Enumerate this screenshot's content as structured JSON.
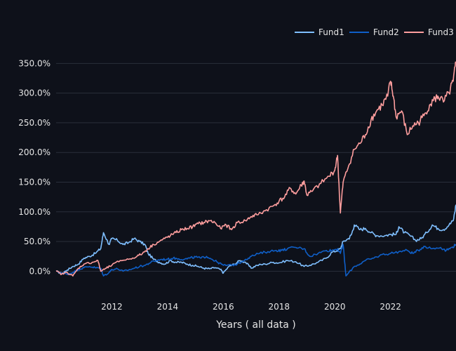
{
  "chart_data": {
    "type": "line",
    "title": "",
    "xlabel": "Years ( all data )",
    "ylabel": "",
    "x_range": [
      2010.0,
      2024.35
    ],
    "ylim": [
      -0.28,
      3.8
    ],
    "y_ticks": [
      0,
      0.5,
      1.0,
      1.5,
      2.0,
      2.5,
      3.0,
      3.5
    ],
    "y_tick_labels": [
      "0.0%",
      "50.0%",
      "100.0%",
      "150.0%",
      "200.0%",
      "250.0%",
      "300.0%",
      "350.0%"
    ],
    "x_ticks": [
      2012,
      2014,
      2016,
      2018,
      2020,
      2022
    ],
    "x_tick_labels": [
      "2012",
      "2014",
      "2016",
      "2018",
      "2020",
      "2022"
    ],
    "grid": true,
    "legend_position": "top-right",
    "background": "#0e111a",
    "series": [
      {
        "name": "Fund1",
        "color": "#7fbfff",
        "x": [
          2010.0,
          2010.2,
          2010.4,
          2010.6,
          2010.8,
          2011.0,
          2011.2,
          2011.4,
          2011.6,
          2011.7,
          2011.9,
          2012.0,
          2012.2,
          2012.4,
          2012.6,
          2012.8,
          2013.0,
          2013.2,
          2013.3,
          2013.5,
          2013.7,
          2013.9,
          2014.1,
          2014.3,
          2014.5,
          2014.7,
          2014.9,
          2015.1,
          2015.3,
          2015.5,
          2015.7,
          2015.9,
          2016.0,
          2016.2,
          2016.4,
          2016.6,
          2016.8,
          2017.0,
          2017.2,
          2017.5,
          2017.8,
          2018.0,
          2018.3,
          2018.6,
          2018.9,
          2019.1,
          2019.4,
          2019.7,
          2019.9,
          2020.1,
          2020.2,
          2020.3,
          2020.5,
          2020.6,
          2020.7,
          2020.9,
          2021.1,
          2021.3,
          2021.5,
          2021.8,
          2022.0,
          2022.2,
          2022.3,
          2022.5,
          2022.7,
          2022.9,
          2023.1,
          2023.3,
          2023.5,
          2023.7,
          2023.9,
          2024.1,
          2024.25,
          2024.35
        ],
        "values": [
          0.0,
          -0.04,
          0.02,
          0.08,
          0.12,
          0.22,
          0.25,
          0.3,
          0.38,
          0.65,
          0.45,
          0.55,
          0.52,
          0.45,
          0.48,
          0.55,
          0.5,
          0.44,
          0.3,
          0.2,
          0.15,
          0.12,
          0.18,
          0.15,
          0.15,
          0.12,
          0.1,
          0.08,
          0.05,
          0.04,
          0.06,
          0.03,
          -0.03,
          0.08,
          0.12,
          0.18,
          0.15,
          0.05,
          0.1,
          0.12,
          0.15,
          0.14,
          0.18,
          0.16,
          0.08,
          0.1,
          0.15,
          0.22,
          0.32,
          0.35,
          0.38,
          0.5,
          0.55,
          0.62,
          0.78,
          0.7,
          0.72,
          0.65,
          0.6,
          0.6,
          0.62,
          0.62,
          0.75,
          0.65,
          0.6,
          0.52,
          0.55,
          0.65,
          0.78,
          0.72,
          0.7,
          0.78,
          0.85,
          1.12
        ]
      },
      {
        "name": "Fund2",
        "color": "#0f5fc8",
        "x": [
          2010.0,
          2010.2,
          2010.4,
          2010.6,
          2010.8,
          2011.0,
          2011.2,
          2011.4,
          2011.6,
          2011.7,
          2011.9,
          2012.0,
          2012.2,
          2012.4,
          2012.6,
          2012.8,
          2013.0,
          2013.2,
          2013.4,
          2013.6,
          2013.8,
          2014.0,
          2014.2,
          2014.4,
          2014.6,
          2014.8,
          2015.0,
          2015.2,
          2015.4,
          2015.6,
          2015.8,
          2016.0,
          2016.3,
          2016.5,
          2016.8,
          2017.0,
          2017.3,
          2017.6,
          2017.9,
          2018.1,
          2018.3,
          2018.6,
          2018.9,
          2019.1,
          2019.4,
          2019.7,
          2019.9,
          2020.1,
          2020.2,
          2020.3,
          2020.4,
          2020.7,
          2020.9,
          2021.1,
          2021.4,
          2021.7,
          2022.0,
          2022.3,
          2022.6,
          2022.8,
          2023.0,
          2023.2,
          2023.5,
          2023.8,
          2024.0,
          2024.2,
          2024.35
        ],
        "values": [
          0.0,
          -0.03,
          -0.05,
          -0.02,
          0.03,
          0.06,
          0.08,
          0.06,
          0.05,
          -0.08,
          -0.02,
          0.03,
          0.04,
          0.0,
          0.02,
          0.05,
          0.08,
          0.1,
          0.15,
          0.18,
          0.2,
          0.2,
          0.22,
          0.21,
          0.2,
          0.22,
          0.24,
          0.22,
          0.25,
          0.2,
          0.15,
          0.1,
          0.1,
          0.12,
          0.2,
          0.25,
          0.3,
          0.33,
          0.35,
          0.35,
          0.38,
          0.4,
          0.38,
          0.25,
          0.3,
          0.35,
          0.35,
          0.38,
          0.3,
          0.45,
          -0.08,
          0.08,
          0.12,
          0.18,
          0.22,
          0.28,
          0.3,
          0.33,
          0.35,
          0.3,
          0.35,
          0.42,
          0.38,
          0.4,
          0.35,
          0.4,
          0.45
        ]
      },
      {
        "name": "Fund3",
        "color": "#ff9e9e",
        "x": [
          2010.0,
          2010.2,
          2010.4,
          2010.6,
          2010.8,
          2011.0,
          2011.3,
          2011.5,
          2011.6,
          2011.8,
          2012.0,
          2012.3,
          2012.6,
          2012.9,
          2013.1,
          2013.3,
          2013.5,
          2013.7,
          2013.9,
          2014.1,
          2014.3,
          2014.5,
          2014.7,
          2014.9,
          2015.1,
          2015.3,
          2015.5,
          2015.7,
          2015.9,
          2016.1,
          2016.3,
          2016.5,
          2016.8,
          2017.0,
          2017.2,
          2017.5,
          2017.8,
          2018.0,
          2018.2,
          2018.4,
          2018.6,
          2018.8,
          2018.9,
          2019.0,
          2019.2,
          2019.5,
          2019.8,
          2020.0,
          2020.1,
          2020.2,
          2020.3,
          2020.5,
          2020.7,
          2020.9,
          2021.1,
          2021.3,
          2021.5,
          2021.7,
          2021.9,
          2022.0,
          2022.1,
          2022.2,
          2022.4,
          2022.6,
          2022.8,
          2023.0,
          2023.2,
          2023.4,
          2023.6,
          2023.7,
          2023.9,
          2024.1,
          2024.25,
          2024.35
        ],
        "values": [
          0.0,
          -0.05,
          -0.02,
          -0.08,
          0.05,
          0.12,
          0.15,
          0.18,
          0.0,
          0.05,
          0.1,
          0.18,
          0.2,
          0.25,
          0.3,
          0.38,
          0.45,
          0.5,
          0.55,
          0.6,
          0.65,
          0.7,
          0.72,
          0.75,
          0.8,
          0.82,
          0.85,
          0.82,
          0.72,
          0.78,
          0.7,
          0.82,
          0.85,
          0.92,
          0.95,
          1.02,
          1.1,
          1.18,
          1.25,
          1.4,
          1.3,
          1.45,
          1.52,
          1.28,
          1.35,
          1.48,
          1.6,
          1.7,
          1.95,
          0.98,
          1.5,
          1.78,
          2.05,
          2.15,
          2.3,
          2.55,
          2.7,
          2.8,
          2.95,
          3.2,
          2.95,
          2.6,
          2.7,
          2.3,
          2.45,
          2.5,
          2.62,
          2.8,
          2.9,
          2.95,
          2.85,
          3.0,
          3.2,
          3.52
        ]
      }
    ]
  }
}
